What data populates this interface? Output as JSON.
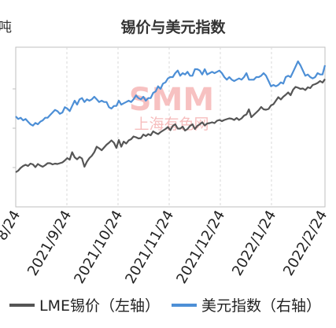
{
  "chart_data": {
    "type": "line",
    "title": "锡价与美元指数",
    "left_axis_unit": "吨",
    "watermark": "SMM",
    "watermark_sub": "上海有色网",
    "x_tick_labels": [
      "8/24",
      "2021/9/24",
      "2021/10/24",
      "2021/11/24",
      "2021/12/24",
      "2022/1/24",
      "2022/2/24"
    ],
    "x_range": [
      "2021-08-24",
      "2022-02-24"
    ],
    "grid": true,
    "legend_position": "bottom",
    "series": [
      {
        "name": "LME锡价（左轴）",
        "axis": "left",
        "color": "#555555",
        "values": [
          28.8,
          29.2,
          29.9,
          30.4,
          30.7,
          30.4,
          31.0,
          30.8,
          30.1,
          30.9,
          30.5,
          30.2,
          30.6,
          31.1,
          31.1,
          30.8,
          31.0,
          30.9,
          31.1,
          31.3,
          31.8,
          32.4,
          32.0,
          33.9,
          32.6,
          32.1,
          32.7,
          32.3,
          30.2,
          31.5,
          32.4,
          33.0,
          33.9,
          35.3,
          34.9,
          34.4,
          35.1,
          35.8,
          36.3,
          36.9,
          36.3,
          35.0,
          37.0,
          35.3,
          36.6,
          36.1,
          36.9,
          37.2,
          37.9,
          37.7,
          37.4,
          37.5,
          38.4,
          38.0,
          38.5,
          38.2,
          39.2,
          38.8,
          38.5,
          39.0,
          39.4,
          39.8,
          40.3,
          39.5,
          40.6,
          41.0,
          39.9,
          39.9,
          40.4,
          39.4,
          39.8,
          40.6,
          41.0,
          39.8,
          40.6,
          41.0,
          41.5,
          40.7,
          41.2,
          41.3,
          41.5,
          41.3,
          41.9,
          42.1,
          41.8,
          42.1,
          42.3,
          42.5,
          42.4,
          42.1,
          42.6,
          42.1,
          42.5,
          43.2,
          43.5,
          44.8,
          42.8,
          43.4,
          44.0,
          44.6,
          45.4,
          44.8,
          44.7,
          44.9,
          45.8,
          46.1,
          47.0,
          47.9,
          47.3,
          48.0,
          48.5,
          49.1,
          48.4,
          49.8,
          50.5,
          50.3,
          50.0,
          50.1,
          49.7,
          50.4,
          50.2,
          51.0,
          51.2,
          51.5,
          52.0,
          51.6,
          52.5
        ]
      },
      {
        "name": "美元指数（右轴）",
        "axis": "right",
        "color": "#4d8fd6",
        "values": [
          92.9,
          92.7,
          92.8,
          92.6,
          92.7,
          92.5,
          92.3,
          92.2,
          92.4,
          92.3,
          92.5,
          92.6,
          92.8,
          92.8,
          93.0,
          93.2,
          93.4,
          93.3,
          93.1,
          93.2,
          93.6,
          93.5,
          93.3,
          93.7,
          94.1,
          93.8,
          94.2,
          94.3,
          94.0,
          94.2,
          94.1,
          94.2,
          94.4,
          94.2,
          94.0,
          94.1,
          94.0,
          94.0,
          93.6,
          93.5,
          93.7,
          93.7,
          94.1,
          93.8,
          93.9,
          94.0,
          94.1,
          94.0,
          94.2,
          94.5,
          94.3,
          94.2,
          94.4,
          94.1,
          94.3,
          94.3,
          94.7,
          94.8,
          95.2,
          95.0,
          95.4,
          95.5,
          95.8,
          95.9,
          95.9,
          96.2,
          96.4,
          96.0,
          96.2,
          96.1,
          96.3,
          96.0,
          96.0,
          96.5,
          96.5,
          96.4,
          96.1,
          96.5,
          96.1,
          96.2,
          96.3,
          96.2,
          96.3,
          96.4,
          96.2,
          95.9,
          95.7,
          95.9,
          95.7,
          95.6,
          95.7,
          95.8,
          95.7,
          95.9,
          96.2,
          95.7,
          95.7,
          95.7,
          95.9,
          95.9,
          96.0,
          96.2,
          96.0,
          95.6,
          95.2,
          95.3,
          95.2,
          95.3,
          95.5,
          95.4,
          95.9,
          96.0,
          95.9,
          96.3,
          96.7,
          97.1,
          96.8,
          96.4,
          96.0,
          96.1,
          95.9,
          95.8,
          95.9,
          96.2,
          96.1,
          96.1,
          96.8
        ]
      }
    ]
  }
}
